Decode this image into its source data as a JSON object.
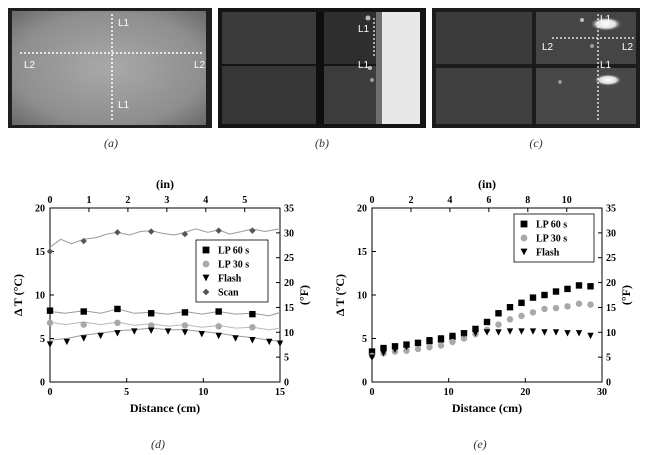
{
  "figures": [
    {
      "id": "a",
      "caption": "(a)",
      "labels": [
        "L1",
        "L2",
        "L2",
        "L1"
      ]
    },
    {
      "id": "b",
      "caption": "(b)",
      "labels": [
        "L1",
        "L1"
      ]
    },
    {
      "id": "c",
      "caption": "(c)",
      "labels": [
        "L1",
        "L2",
        "L2",
        "L1"
      ]
    }
  ],
  "captions": {
    "d": "(d)",
    "e": "(e)"
  },
  "chart_data": [
    {
      "type": "scatter",
      "panel": "(d)",
      "xlabel": "Distance (cm)",
      "x2label": "(in)",
      "ylabel": "Δ T (°C)",
      "y2label": "(°F)",
      "xlim": [
        0,
        15
      ],
      "ylim": [
        0,
        20
      ],
      "y2lim": [
        0,
        35
      ],
      "x2lim": [
        0,
        5.906
      ],
      "xticks": [
        "0",
        "5",
        "10",
        "15"
      ],
      "yticks": [
        "0",
        "5",
        "10",
        "15",
        "20"
      ],
      "x2ticks": [
        "0",
        "1",
        "2",
        "3",
        "4",
        "5"
      ],
      "y2ticks": [
        "0",
        "5",
        "10",
        "15",
        "20",
        "25",
        "30",
        "35"
      ],
      "legend_position": "right",
      "series": [
        {
          "name": "LP 60 s",
          "marker": "square",
          "color": "#000000",
          "x": [
            0,
            2.2,
            4.4,
            6.6,
            8.8,
            11,
            13.2
          ],
          "y": [
            8.2,
            8.1,
            8.4,
            7.9,
            8.0,
            8.1,
            7.8
          ],
          "line": [
            [
              0,
              8.1
            ],
            [
              1,
              7.9
            ],
            [
              2.2,
              8.2
            ],
            [
              3.3,
              7.9
            ],
            [
              4.4,
              8.4
            ],
            [
              5.5,
              7.9
            ],
            [
              6.6,
              8.0
            ],
            [
              7.7,
              7.8
            ],
            [
              8.8,
              8.1
            ],
            [
              9.9,
              7.8
            ],
            [
              11,
              8.1
            ],
            [
              12.1,
              7.8
            ],
            [
              13.2,
              7.9
            ],
            [
              14.3,
              7.6
            ],
            [
              15,
              8.0
            ]
          ]
        },
        {
          "name": "LP 30 s",
          "marker": "circle",
          "color": "#a8a8a8",
          "x": [
            0,
            2.2,
            4.4,
            6.6,
            8.8,
            11,
            13.2
          ],
          "y": [
            6.8,
            6.6,
            6.8,
            6.5,
            6.5,
            6.4,
            6.3
          ],
          "line": [
            [
              0,
              6.9
            ],
            [
              1,
              6.6
            ],
            [
              2.2,
              6.9
            ],
            [
              3.3,
              6.6
            ],
            [
              4.4,
              6.9
            ],
            [
              5.5,
              6.5
            ],
            [
              6.6,
              6.7
            ],
            [
              7.7,
              6.4
            ],
            [
              8.8,
              6.6
            ],
            [
              9.9,
              6.3
            ],
            [
              11,
              6.5
            ],
            [
              12.1,
              6.2
            ],
            [
              13.2,
              6.3
            ],
            [
              14.3,
              6.0
            ],
            [
              15,
              6.2
            ]
          ]
        },
        {
          "name": "Flash",
          "marker": "triangle-down",
          "color": "#000000",
          "x": [
            0,
            1.1,
            2.2,
            3.3,
            4.4,
            5.5,
            6.6,
            7.7,
            8.8,
            9.9,
            11,
            12.1,
            13.2,
            14.3,
            15
          ],
          "y": [
            4.3,
            4.6,
            5.0,
            5.3,
            5.6,
            5.8,
            5.9,
            5.8,
            5.7,
            5.5,
            5.3,
            5.0,
            4.8,
            4.6,
            4.4
          ],
          "line": [
            [
              0,
              4.8
            ],
            [
              1.1,
              5.0
            ],
            [
              2.2,
              5.4
            ],
            [
              3.3,
              5.6
            ],
            [
              4.4,
              5.9
            ],
            [
              5.5,
              6.0
            ],
            [
              6.6,
              6.2
            ],
            [
              7.7,
              6.0
            ],
            [
              8.8,
              6.0
            ],
            [
              9.9,
              5.8
            ],
            [
              11,
              5.6
            ],
            [
              12.1,
              5.3
            ],
            [
              13.2,
              5.1
            ],
            [
              14.3,
              4.8
            ],
            [
              15,
              4.7
            ]
          ]
        },
        {
          "name": "Scan",
          "marker": "diamond",
          "color": "#555555",
          "x": [
            0,
            2.2,
            4.4,
            6.6,
            8.8,
            11,
            13.2
          ],
          "y": [
            15.0,
            16.2,
            17.2,
            17.3,
            17.0,
            17.4,
            17.4
          ],
          "line": [
            [
              0,
              15.5
            ],
            [
              0.7,
              16.4
            ],
            [
              1.4,
              15.9
            ],
            [
              2.2,
              16.4
            ],
            [
              3.0,
              16.6
            ],
            [
              3.7,
              17.0
            ],
            [
              4.4,
              17.2
            ],
            [
              5.2,
              16.9
            ],
            [
              5.9,
              17.3
            ],
            [
              6.6,
              17.4
            ],
            [
              7.3,
              17.1
            ],
            [
              8.1,
              16.9
            ],
            [
              8.8,
              17.2
            ],
            [
              9.5,
              17.6
            ],
            [
              10.3,
              17.2
            ],
            [
              11,
              17.5
            ],
            [
              11.7,
              17.0
            ],
            [
              12.5,
              17.3
            ],
            [
              13.2,
              17.6
            ],
            [
              14.0,
              17.3
            ],
            [
              15,
              17.6
            ]
          ]
        }
      ]
    },
    {
      "type": "scatter",
      "panel": "(e)",
      "xlabel": "Distance (cm)",
      "x2label": "(in)",
      "ylabel": "Δ T (°C)",
      "y2label": "(°F)",
      "xlim": [
        0,
        30
      ],
      "ylim": [
        0,
        20
      ],
      "y2lim": [
        0,
        35
      ],
      "x2lim": [
        0,
        11.81
      ],
      "xticks": [
        "0",
        "10",
        "20",
        "30"
      ],
      "yticks": [
        "0",
        "5",
        "10",
        "15",
        "20"
      ],
      "x2ticks": [
        "0",
        "2",
        "4",
        "6",
        "8",
        "10"
      ],
      "y2ticks": [
        "0",
        "5",
        "10",
        "15",
        "20",
        "25",
        "30",
        "35"
      ],
      "legend_position": "top-right",
      "series": [
        {
          "name": "LP 60 s",
          "marker": "square",
          "color": "#000000",
          "x": [
            0,
            1.5,
            3,
            4.5,
            6,
            7.5,
            9,
            10.5,
            12,
            13.5,
            15,
            16.5,
            18,
            19.5,
            21,
            22.5,
            24,
            25.5,
            27,
            28.5
          ],
          "y": [
            3.5,
            3.9,
            4.1,
            4.3,
            4.5,
            4.7,
            4.9,
            5.2,
            5.6,
            6.1,
            6.9,
            7.9,
            8.6,
            9.1,
            9.7,
            10.0,
            10.4,
            10.7,
            11.1,
            11.0
          ]
        },
        {
          "name": "LP 30 s",
          "marker": "circle",
          "color": "#a8a8a8",
          "x": [
            0,
            1.5,
            3,
            4.5,
            6,
            7.5,
            9,
            10.5,
            12,
            13.5,
            15,
            16.5,
            18,
            19.5,
            21,
            22.5,
            24,
            25.5,
            27,
            28.5
          ],
          "y": [
            3.0,
            3.3,
            3.5,
            3.6,
            3.8,
            4.0,
            4.2,
            4.6,
            5.0,
            5.5,
            6.0,
            6.6,
            7.2,
            7.6,
            8.0,
            8.4,
            8.5,
            8.7,
            9.0,
            8.9
          ]
        },
        {
          "name": "Flash",
          "marker": "triangle-down",
          "color": "#000000",
          "x": [
            0,
            1.5,
            3,
            4.5,
            6,
            7.5,
            9,
            10.5,
            12,
            13.5,
            15,
            16.5,
            18,
            19.5,
            21,
            22.5,
            24,
            25.5,
            27,
            28.5
          ],
          "y": [
            2.8,
            3.3,
            3.7,
            4.0,
            4.4,
            4.8,
            5.0,
            5.3,
            5.5,
            5.6,
            5.7,
            5.7,
            5.8,
            5.8,
            5.8,
            5.7,
            5.7,
            5.6,
            5.6,
            5.3
          ]
        }
      ]
    }
  ]
}
